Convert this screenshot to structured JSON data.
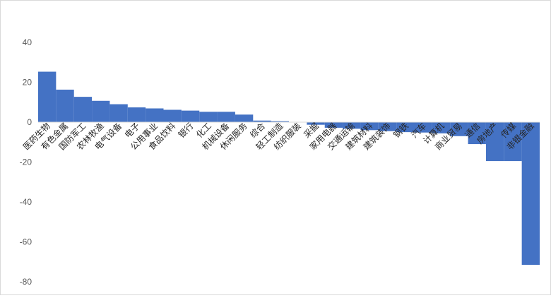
{
  "chart_data": {
    "type": "bar",
    "title": "",
    "xlabel": "",
    "ylabel": "",
    "ylim": [
      -80,
      40
    ],
    "yticks": [
      40,
      20,
      0,
      -20,
      -40,
      -60,
      -80
    ],
    "ytick_labels": [
      "40",
      "20",
      "0",
      "-20",
      "-40",
      "-60",
      "-80"
    ],
    "grid": false,
    "legend": "none",
    "color": "#4472C4",
    "categories": [
      "医药生物",
      "有色金属",
      "国防军工",
      "农林牧渔",
      "电气设备",
      "电子",
      "公用事业",
      "食品饮料",
      "银行",
      "化工",
      "机械设备",
      "休闲服务",
      "综合",
      "轻工制造",
      "纺织服装",
      "采掘",
      "家用电器",
      "交通运输",
      "建筑材料",
      "建筑装饰",
      "钢铁",
      "汽车",
      "计算机",
      "商业贸易",
      "通信",
      "房地产",
      "传媒",
      "非银金融"
    ],
    "values": [
      25.3,
      16.3,
      12.7,
      10.7,
      9.0,
      7.4,
      6.9,
      6.2,
      5.8,
      5.2,
      5.2,
      3.8,
      0.8,
      0.5,
      0.0,
      -1.3,
      -2.8,
      -3.3,
      -4.0,
      -4.5,
      -5.0,
      -5.2,
      -5.6,
      -7.0,
      -11.0,
      -19.5,
      -19.5,
      -71.5
    ]
  }
}
